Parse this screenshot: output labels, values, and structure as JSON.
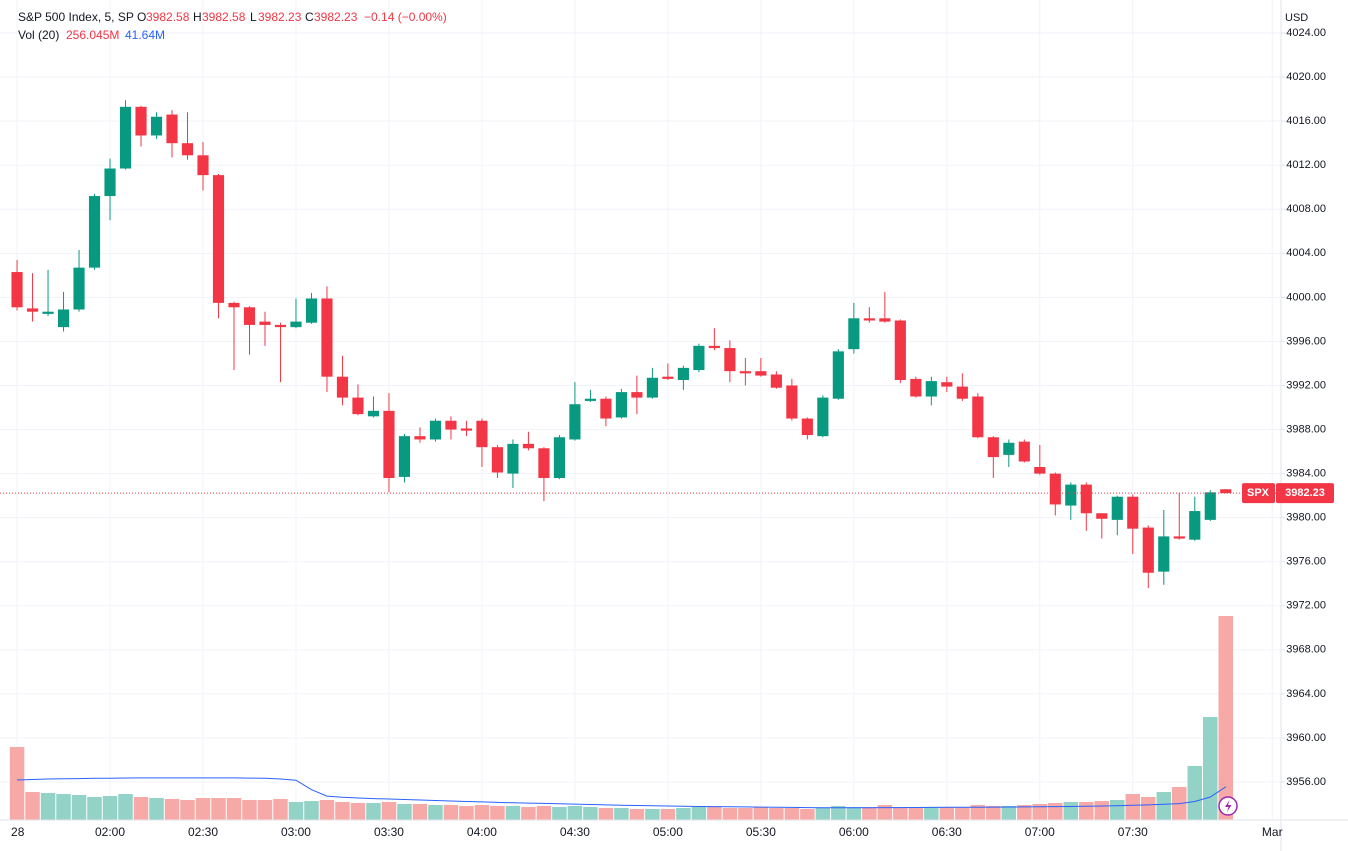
{
  "chart_data": {
    "type": "candlestick",
    "title": "S&P 500 Index, 5, SP",
    "ohlc_legend": [
      {
        "label": "O",
        "value": 3982.58
      },
      {
        "label": "H",
        "value": 3982.58
      },
      {
        "label": "L",
        "value": 3982.23
      },
      {
        "label": "C",
        "value": 3982.23
      }
    ],
    "change_label": "−0.14 (−0.00%)",
    "volume_legend": {
      "label": "Vol (20)",
      "values": [
        "256.045M",
        "41.64M"
      ]
    },
    "currency": "USD",
    "open": [
      4002.3,
      3999.0,
      3998.5,
      3997.3,
      3998.9,
      4002.7,
      4009.2,
      4011.7,
      4017.3,
      4014.7,
      4016.6,
      4014.0,
      4012.9,
      4011.1,
      3999.5,
      3999.1,
      3997.8,
      3997.5,
      3997.3,
      3997.7,
      3999.9,
      3992.8,
      3990.9,
      3989.2,
      3989.7,
      3983.7,
      3987.4,
      3987.1,
      3988.8,
      3988.1,
      3988.8,
      3986.4,
      3984.0,
      3986.7,
      3986.3,
      3983.6,
      3987.1,
      3990.6,
      3990.8,
      3989.1,
      3991.4,
      3990.9,
      3992.8,
      3992.5,
      3993.4,
      3995.6,
      3995.4,
      3993.3,
      3993.3,
      3993.0,
      3992.0,
      3989.0,
      3987.4,
      3990.8,
      3995.3,
      3998.1,
      3998.1,
      3997.9,
      3992.6,
      3991.0,
      3992.3,
      3991.9,
      3991.0,
      3987.3,
      3985.7,
      3986.9,
      3984.6,
      3984.0,
      3981.1,
      3983.0,
      3980.4,
      3979.8,
      3981.9,
      3979.1,
      3975.1,
      3978.3,
      3978.0,
      3979.8,
      3982.58
    ],
    "high": [
      4003.4,
      4002.2,
      4002.5,
      4000.5,
      4004.3,
      4009.4,
      4012.6,
      4017.9,
      4017.4,
      4016.8,
      4017.0,
      4016.8,
      4014.1,
      4011.2,
      3999.6,
      3999.2,
      3998.7,
      3997.7,
      3999.9,
      4000.4,
      4001.0,
      3994.7,
      3992.1,
      3991.0,
      3991.3,
      3987.6,
      3988.2,
      3989.0,
      3989.2,
      3988.8,
      3989.0,
      3986.6,
      3987.1,
      3987.8,
      3986.4,
      3987.5,
      3992.3,
      3991.6,
      3991.0,
      3991.7,
      3992.9,
      3993.6,
      3994.0,
      3993.8,
      3995.8,
      3997.2,
      3996.1,
      3994.5,
      3994.5,
      3993.3,
      3992.6,
      3989.1,
      3991.1,
      3995.3,
      3999.5,
      3999.1,
      4000.5,
      3998.0,
      3992.8,
      3992.8,
      3992.8,
      3993.1,
      3991.3,
      3987.4,
      3987.1,
      3987.1,
      3986.6,
      3984.1,
      3983.2,
      3983.2,
      3980.4,
      3982.0,
      3982.1,
      3979.3,
      3980.7,
      3982.2,
      3981.9,
      3982.5,
      3982.58
    ],
    "low": [
      3998.8,
      3997.8,
      3998.3,
      3996.9,
      3998.7,
      4002.5,
      4007.0,
      4011.6,
      4013.7,
      4014.4,
      4012.7,
      4012.5,
      4009.7,
      3998.1,
      3993.4,
      3994.8,
      3995.6,
      3992.3,
      3997.2,
      3997.6,
      3991.4,
      3990.2,
      3989.3,
      3989.1,
      3982.3,
      3983.2,
      3986.8,
      3986.9,
      3987.1,
      3987.4,
      3984.6,
      3983.6,
      3982.7,
      3986.1,
      3981.5,
      3983.5,
      3987.0,
      3990.5,
      3988.3,
      3989.0,
      3989.4,
      3990.8,
      3992.5,
      3991.6,
      3993.2,
      3995.2,
      3992.3,
      3992.0,
      3992.8,
      3991.7,
      3988.8,
      3987.1,
      3987.3,
      3990.7,
      3994.9,
      3997.7,
      3997.7,
      3992.2,
      3990.9,
      3990.2,
      3991.4,
      3990.6,
      3987.2,
      3983.6,
      3984.6,
      3985.0,
      3983.9,
      3980.2,
      3979.8,
      3978.8,
      3978.1,
      3978.4,
      3976.7,
      3973.6,
      3973.9,
      3978.0,
      3977.9,
      3979.7,
      3982.23
    ],
    "close": [
      3999.1,
      3998.7,
      3998.7,
      3998.9,
      4002.7,
      4009.2,
      4011.7,
      4017.3,
      4014.7,
      4016.4,
      4014.0,
      4012.9,
      4011.1,
      3999.5,
      3999.1,
      3997.5,
      3997.5,
      3997.3,
      3997.8,
      3999.9,
      3992.8,
      3990.9,
      3989.4,
      3989.7,
      3983.6,
      3987.4,
      3987.1,
      3988.8,
      3988.0,
      3987.9,
      3986.4,
      3984.1,
      3986.7,
      3986.3,
      3983.6,
      3987.3,
      3990.3,
      3990.8,
      3989.0,
      3991.4,
      3990.9,
      3992.7,
      3992.6,
      3993.6,
      3995.6,
      3995.4,
      3993.3,
      3993.1,
      3992.9,
      3991.8,
      3989.0,
      3987.5,
      3990.9,
      3995.1,
      3998.1,
      3997.9,
      3997.8,
      3992.5,
      3991.0,
      3992.4,
      3991.9,
      3990.8,
      3987.3,
      3985.5,
      3986.8,
      3985.1,
      3984.0,
      3981.2,
      3983.0,
      3980.4,
      3979.9,
      3981.9,
      3979.0,
      3975.0,
      3978.3,
      3978.1,
      3980.6,
      3982.3,
      3982.23
    ],
    "volume": [
      91.6,
      35.1,
      33.9,
      32.6,
      31.4,
      28.9,
      30.1,
      32.6,
      28.9,
      27.6,
      26.4,
      25.1,
      27.6,
      27.6,
      27.6,
      25.1,
      25.1,
      26.4,
      22.6,
      23.8,
      25.1,
      22.6,
      21.3,
      21.3,
      22.6,
      20.1,
      20.1,
      18.8,
      18.8,
      17.6,
      18.8,
      17.6,
      17.6,
      16.3,
      17.6,
      16.3,
      17.6,
      16.3,
      15.1,
      15.1,
      13.8,
      13.8,
      13.8,
      15.1,
      16.3,
      16.3,
      15.1,
      15.1,
      16.3,
      15.1,
      15.1,
      13.8,
      15.1,
      17.6,
      16.3,
      16.3,
      18.8,
      16.3,
      16.3,
      16.3,
      16.3,
      16.3,
      18.8,
      17.6,
      17.6,
      18.8,
      20.1,
      21.3,
      22.6,
      22.6,
      23.8,
      25.1,
      32.6,
      28.9,
      35.1,
      41.4,
      67.8,
      129.3,
      256.045
    ],
    "volume_ma": [
      50.2,
      50.8,
      51.4,
      51.8,
      52.0,
      52.3,
      52.5,
      52.7,
      52.8,
      52.9,
      52.9,
      52.9,
      52.9,
      52.9,
      52.8,
      52.6,
      52.3,
      51.5,
      50.0,
      38.0,
      30.0,
      28.5,
      27.6,
      26.9,
      26.4,
      25.7,
      25.1,
      24.5,
      23.8,
      23.2,
      22.7,
      22.1,
      21.6,
      21.2,
      20.8,
      20.3,
      19.9,
      19.5,
      19.0,
      18.6,
      18.2,
      17.9,
      17.6,
      17.3,
      17.0,
      16.8,
      16.6,
      16.4,
      16.2,
      16.0,
      15.8,
      15.6,
      15.5,
      15.5,
      15.5,
      15.5,
      15.6,
      15.6,
      15.7,
      15.8,
      15.9,
      16.0,
      16.1,
      16.2,
      16.3,
      16.5,
      16.6,
      16.8,
      17.0,
      17.3,
      17.6,
      18.0,
      18.6,
      19.0,
      19.7,
      20.6,
      23.2,
      28.9,
      41.64
    ],
    "up_color": "#089981",
    "down_color": "#f23645",
    "volume_up_color": "#92d2c7",
    "volume_down_color": "#f7a9a7",
    "ma_color": "#2962ff",
    "xlim": [
      -1.1,
      81.5
    ],
    "xticks": [
      {
        "value": 0,
        "label": "28"
      },
      {
        "value": 6,
        "label": "02:00"
      },
      {
        "value": 12,
        "label": "02:30"
      },
      {
        "value": 18,
        "label": "03:00"
      },
      {
        "value": 24,
        "label": "03:30"
      },
      {
        "value": 30,
        "label": "04:00"
      },
      {
        "value": 36,
        "label": "04:30"
      },
      {
        "value": 42,
        "label": "05:00"
      },
      {
        "value": 48,
        "label": "05:30"
      },
      {
        "value": 54,
        "label": "06:00"
      },
      {
        "value": 60,
        "label": "06:30"
      },
      {
        "value": 66,
        "label": "07:00"
      },
      {
        "value": 72,
        "label": "07:30"
      },
      {
        "value": 81,
        "label": "Mar"
      }
    ],
    "ylim": [
      3952.55,
      4027.0
    ],
    "yticks": [
      {
        "value": 4024,
        "label": "4024.00"
      },
      {
        "value": 4020,
        "label": "4020.00"
      },
      {
        "value": 4016,
        "label": "4016.00"
      },
      {
        "value": 4012,
        "label": "4012.00"
      },
      {
        "value": 4008,
        "label": "4008.00"
      },
      {
        "value": 4004,
        "label": "4004.00"
      },
      {
        "value": 4000,
        "label": "4000.00"
      },
      {
        "value": 3996,
        "label": "3996.00"
      },
      {
        "value": 3992,
        "label": "3992.00"
      },
      {
        "value": 3988,
        "label": "3988.00"
      },
      {
        "value": 3984,
        "label": "3984.00"
      },
      {
        "value": 3980,
        "label": "3980.00"
      },
      {
        "value": 3976,
        "label": "3976.00"
      },
      {
        "value": 3972,
        "label": "3972.00"
      },
      {
        "value": 3968,
        "label": "3968.00"
      },
      {
        "value": 3964,
        "label": "3964.00"
      },
      {
        "value": 3960,
        "label": "3960.00"
      },
      {
        "value": 3956,
        "label": "3956.00"
      }
    ],
    "grid": true,
    "last_price": {
      "symbol": "SPX",
      "value": 3982.23
    }
  }
}
